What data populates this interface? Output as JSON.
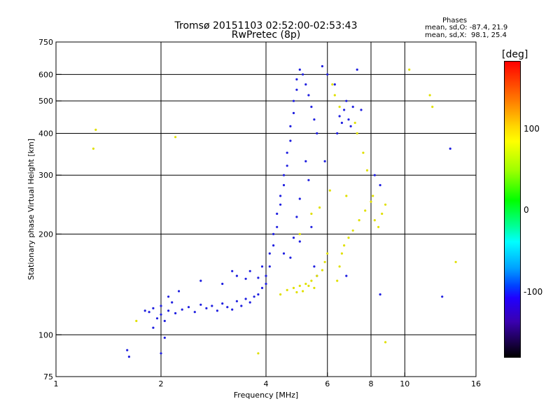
{
  "title": "Tromsø 20151103 02:52:00-02:53:43",
  "subtitle": "RwPretec (8p)",
  "stats": {
    "heading": "Phases",
    "o_line": "mean, sd,O: -87.4, 21.9",
    "x_line": "mean, sd,X:  98.1, 25.4"
  },
  "colorbar": {
    "title": "[deg]",
    "ticks": [
      "100",
      "0",
      "-100"
    ],
    "range": [
      -180,
      180
    ],
    "colors": [
      "#000000",
      "#2000ff",
      "#0040ff",
      "#00ffff",
      "#00ff00",
      "#ffff00",
      "#ff7a00",
      "#ff0000"
    ]
  },
  "chart_data": {
    "type": "scatter",
    "title": "Tromsø 20151103 02:52:00-02:53:43",
    "subtitle": "RwPretec (8p)",
    "xlabel": "Frequency [MHz]",
    "ylabel": "Stationary phase Virtual Height [km]",
    "x_scale": "log",
    "y_scale": "log",
    "xlim": [
      1,
      16
    ],
    "ylim": [
      75,
      750
    ],
    "x_ticks": [
      1,
      2,
      4,
      6,
      8,
      10,
      16
    ],
    "y_ticks": [
      75,
      100,
      200,
      300,
      400,
      500,
      600,
      750
    ],
    "grid_x": [
      2,
      4,
      6,
      8,
      10
    ],
    "grid_y": [
      100,
      200,
      300,
      400,
      500,
      600
    ],
    "color_label": "[deg]",
    "series": [
      {
        "name": "O",
        "color": "#2020e0",
        "points": [
          [
            1.8,
            118
          ],
          [
            1.85,
            117
          ],
          [
            1.9,
            120
          ],
          [
            1.95,
            112
          ],
          [
            2.0,
            115
          ],
          [
            2.0,
            122
          ],
          [
            2.05,
            110
          ],
          [
            2.1,
            118
          ],
          [
            2.15,
            125
          ],
          [
            2.2,
            116
          ],
          [
            2.3,
            119
          ],
          [
            2.4,
            121
          ],
          [
            2.5,
            117
          ],
          [
            2.6,
            123
          ],
          [
            2.7,
            120
          ],
          [
            2.8,
            122
          ],
          [
            2.9,
            118
          ],
          [
            3.0,
            124
          ],
          [
            3.1,
            121
          ],
          [
            3.2,
            119
          ],
          [
            3.3,
            126
          ],
          [
            3.4,
            122
          ],
          [
            3.5,
            128
          ],
          [
            3.6,
            125
          ],
          [
            3.7,
            130
          ],
          [
            3.8,
            132
          ],
          [
            3.9,
            138
          ],
          [
            4.0,
            142
          ],
          [
            4.0,
            150
          ],
          [
            4.1,
            160
          ],
          [
            4.1,
            175
          ],
          [
            4.2,
            185
          ],
          [
            4.2,
            200
          ],
          [
            4.3,
            210
          ],
          [
            4.3,
            230
          ],
          [
            4.4,
            245
          ],
          [
            4.4,
            260
          ],
          [
            4.5,
            280
          ],
          [
            4.5,
            300
          ],
          [
            4.6,
            320
          ],
          [
            4.6,
            350
          ],
          [
            4.7,
            380
          ],
          [
            4.7,
            420
          ],
          [
            4.8,
            460
          ],
          [
            4.8,
            500
          ],
          [
            4.9,
            540
          ],
          [
            4.9,
            580
          ],
          [
            5.0,
            620
          ],
          [
            5.1,
            600
          ],
          [
            5.2,
            560
          ],
          [
            5.3,
            520
          ],
          [
            5.4,
            480
          ],
          [
            5.5,
            440
          ],
          [
            5.6,
            400
          ],
          [
            5.2,
            330
          ],
          [
            5.3,
            290
          ],
          [
            5.0,
            255
          ],
          [
            4.9,
            225
          ],
          [
            4.8,
            195
          ],
          [
            4.7,
            170
          ],
          [
            3.2,
            155
          ],
          [
            3.3,
            150
          ],
          [
            3.5,
            147
          ],
          [
            3.6,
            155
          ],
          [
            3.8,
            148
          ],
          [
            2.25,
            135
          ],
          [
            2.1,
            130
          ],
          [
            1.6,
            90
          ],
          [
            1.62,
            86
          ],
          [
            2.0,
            88
          ],
          [
            2.05,
            98
          ],
          [
            1.9,
            105
          ],
          [
            2.6,
            145
          ],
          [
            3.0,
            142
          ],
          [
            3.9,
            160
          ],
          [
            4.5,
            175
          ],
          [
            5.0,
            190
          ],
          [
            5.4,
            210
          ],
          [
            5.5,
            160
          ],
          [
            5.6,
            150
          ],
          [
            6.5,
            450
          ],
          [
            6.6,
            430
          ],
          [
            6.7,
            470
          ],
          [
            6.8,
            500
          ],
          [
            6.9,
            440
          ],
          [
            7.0,
            420
          ],
          [
            6.4,
            400
          ],
          [
            7.1,
            480
          ],
          [
            6.3,
            560
          ],
          [
            7.3,
            620
          ],
          [
            7.5,
            470
          ],
          [
            8.2,
            300
          ],
          [
            8.5,
            280
          ],
          [
            13.5,
            360
          ],
          [
            12.8,
            130
          ],
          [
            8.5,
            132
          ],
          [
            6.8,
            150
          ],
          [
            5.8,
            635
          ],
          [
            6.0,
            600
          ],
          [
            5.9,
            330
          ]
        ]
      },
      {
        "name": "X",
        "color": "#e0e000",
        "points": [
          [
            4.4,
            132
          ],
          [
            4.6,
            136
          ],
          [
            4.8,
            138
          ],
          [
            5.0,
            140
          ],
          [
            5.2,
            142
          ],
          [
            5.4,
            145
          ],
          [
            5.6,
            150
          ],
          [
            5.8,
            156
          ],
          [
            5.9,
            165
          ],
          [
            6.0,
            175
          ],
          [
            5.3,
            140
          ],
          [
            5.5,
            138
          ],
          [
            5.1,
            135
          ],
          [
            4.9,
            134
          ],
          [
            6.4,
            145
          ],
          [
            6.5,
            160
          ],
          [
            6.6,
            175
          ],
          [
            6.7,
            185
          ],
          [
            6.9,
            195
          ],
          [
            7.1,
            205
          ],
          [
            7.4,
            220
          ],
          [
            7.7,
            235
          ],
          [
            8.0,
            250
          ],
          [
            8.2,
            220
          ],
          [
            8.4,
            210
          ],
          [
            8.6,
            230
          ],
          [
            8.8,
            245
          ],
          [
            6.2,
            560
          ],
          [
            6.3,
            520
          ],
          [
            6.5,
            480
          ],
          [
            7.2,
            430
          ],
          [
            7.3,
            400
          ],
          [
            7.6,
            350
          ],
          [
            7.8,
            310
          ],
          [
            8.1,
            260
          ],
          [
            1.3,
            410
          ],
          [
            1.28,
            360
          ],
          [
            2.2,
            390
          ],
          [
            1.7,
            110
          ],
          [
            3.8,
            88
          ],
          [
            8.8,
            95
          ],
          [
            10.3,
            620
          ],
          [
            11.8,
            520
          ],
          [
            12.0,
            480
          ],
          [
            14.0,
            165
          ],
          [
            6.1,
            270
          ],
          [
            5.7,
            240
          ],
          [
            5.4,
            230
          ],
          [
            5.0,
            200
          ],
          [
            6.8,
            260
          ]
        ]
      }
    ]
  }
}
